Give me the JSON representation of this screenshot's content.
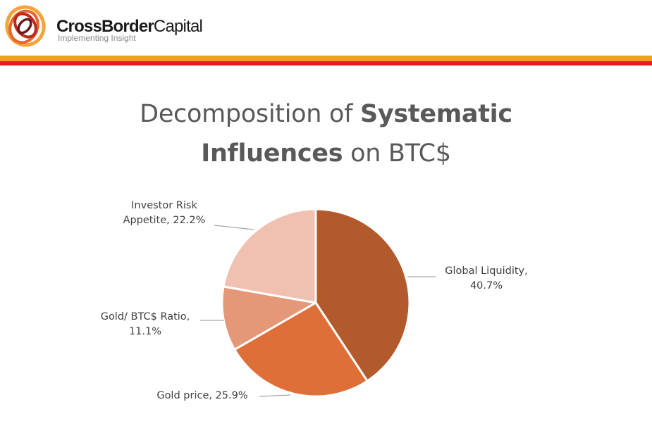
{
  "brand": {
    "name_bold": "CrossBorder",
    "name_thin": "Capital",
    "tagline": "Implementing Insight",
    "colors": {
      "orange": "#f0a020",
      "red": "#e21e1e"
    }
  },
  "title": {
    "line1_prefix": "Decomposition of ",
    "line1_bold": "Systematic",
    "line2_bold": "Influences",
    "line2_suffix": " on BTC$"
  },
  "chart_data": {
    "type": "pie",
    "title": "Decomposition of Systematic Influences on BTC$",
    "start_angle_deg": 0,
    "direction": "clockwise",
    "slices": [
      {
        "label": "Global Liquidity",
        "value": 40.7,
        "display": "40.7%",
        "color": "#b35a2c"
      },
      {
        "label": "Gold price",
        "value": 25.9,
        "display": "25.9%",
        "color": "#de6f38"
      },
      {
        "label": "Gold/ BTC$ Ratio",
        "value": 11.1,
        "display": "11.1%",
        "color": "#e59878"
      },
      {
        "label": "Investor Risk Appetite",
        "value": 22.2,
        "display": "22.2%",
        "color": "#f0c0b0"
      }
    ]
  }
}
